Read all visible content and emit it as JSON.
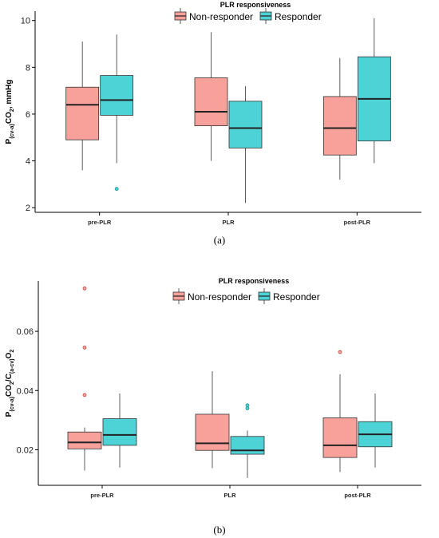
{
  "colors": {
    "non_responder": "#F8A09A",
    "responder": "#4DD3D6"
  },
  "panels": [
    {
      "label": "(a)"
    },
    {
      "label": "(b)"
    }
  ],
  "chart_data": [
    {
      "type": "box",
      "title": "",
      "legend_title": "PLR responsiveness",
      "legend_entries": [
        "Non-responder",
        "Responder"
      ],
      "legend_position": "top-center",
      "ylabel_html": "P<tspan font-size='7' dy='3'>(cv-a)</tspan><tspan dy='-3'>CO</tspan><tspan font-size='7' dy='3'>2</tspan><tspan dy='-3'>, mmHg</tspan>",
      "ylabel": "P(cv-a)CO2, mmHg",
      "xlabel": "",
      "categories": [
        "pre-PLR",
        "PLR",
        "post-PLR"
      ],
      "ylim": [
        1.8,
        10.4
      ],
      "yticks": [
        2,
        4,
        6,
        8,
        10
      ],
      "ytick_labels": [
        "2",
        "4",
        "6",
        "8",
        "10"
      ],
      "grid": false,
      "series": [
        {
          "name": "Non-responder",
          "boxes": [
            {
              "min": 3.6,
              "q1": 4.9,
              "median": 6.4,
              "q3": 7.15,
              "max": 9.1,
              "outliers": []
            },
            {
              "min": 4.0,
              "q1": 5.5,
              "median": 6.1,
              "q3": 7.55,
              "max": 9.5,
              "outliers": []
            },
            {
              "min": 3.2,
              "q1": 4.25,
              "median": 5.4,
              "q3": 6.75,
              "max": 8.4,
              "outliers": []
            }
          ]
        },
        {
          "name": "Responder",
          "boxes": [
            {
              "min": 3.9,
              "q1": 5.95,
              "median": 6.6,
              "q3": 7.65,
              "max": 9.4,
              "outliers": [
                2.8
              ]
            },
            {
              "min": 2.2,
              "q1": 4.55,
              "median": 5.4,
              "q3": 6.55,
              "max": 7.2,
              "outliers": []
            },
            {
              "min": 3.9,
              "q1": 4.85,
              "median": 6.65,
              "q3": 8.45,
              "max": 10.1,
              "outliers": []
            }
          ]
        }
      ]
    },
    {
      "type": "box",
      "title": "",
      "legend_title": "PLR responsiveness",
      "legend_entries": [
        "Non-responder",
        "Responder"
      ],
      "legend_position": "top-center",
      "ylabel_html": "P<tspan font-size='7' dy='3'>(cv-a)</tspan><tspan dy='-3'>CO</tspan><tspan font-size='7' dy='3'>2</tspan><tspan dy='-3'>/C</tspan><tspan font-size='7' dy='3'>(a-cv)</tspan><tspan dy='-3'>O</tspan><tspan font-size='7' dy='3'>2</tspan>",
      "ylabel": "P(cv-a)CO2/C(a-cv)O2",
      "xlabel": "",
      "categories": [
        "pre-PLR",
        "PLR",
        "post-PLR"
      ],
      "ylim": [
        0.008,
        0.077
      ],
      "yticks": [
        0.02,
        0.04,
        0.06
      ],
      "ytick_labels": [
        "0.02",
        "0.04",
        "0.06"
      ],
      "grid": false,
      "series": [
        {
          "name": "Non-responder",
          "boxes": [
            {
              "min": 0.013,
              "q1": 0.0203,
              "median": 0.0225,
              "q3": 0.026,
              "max": 0.0275,
              "outliers": [
                0.0385,
                0.0545,
                0.0745
              ]
            },
            {
              "min": 0.0138,
              "q1": 0.0198,
              "median": 0.0222,
              "q3": 0.032,
              "max": 0.0465,
              "outliers": []
            },
            {
              "min": 0.0125,
              "q1": 0.0174,
              "median": 0.0215,
              "q3": 0.0308,
              "max": 0.0455,
              "outliers": [
                0.053
              ]
            }
          ]
        },
        {
          "name": "Responder",
          "boxes": [
            {
              "min": 0.014,
              "q1": 0.0215,
              "median": 0.025,
              "q3": 0.0305,
              "max": 0.039,
              "outliers": []
            },
            {
              "min": 0.0105,
              "q1": 0.0185,
              "median": 0.0198,
              "q3": 0.0245,
              "max": 0.0265,
              "outliers": [
                0.034,
                0.035
              ]
            },
            {
              "min": 0.014,
              "q1": 0.021,
              "median": 0.0252,
              "q3": 0.0295,
              "max": 0.039,
              "outliers": []
            }
          ]
        }
      ]
    }
  ]
}
